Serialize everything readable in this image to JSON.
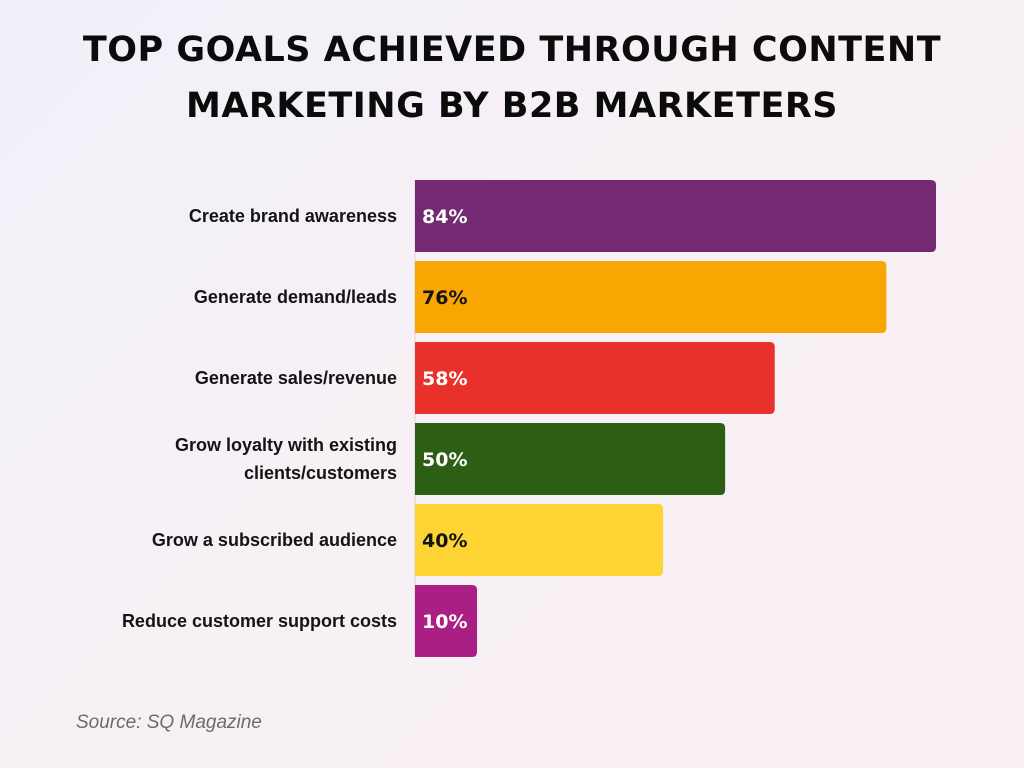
{
  "title_lines": [
    "TOP GOALS ACHIEVED THROUGH CONTENT",
    "MARKETING BY B2B MARKETERS"
  ],
  "source": "Source: SQ Magazine",
  "chart_data": {
    "type": "bar",
    "orientation": "horizontal",
    "title": "TOP GOALS ACHIEVED THROUGH CONTENT MARKETING BY B2B MARKETERS",
    "categories": [
      "Create brand awareness",
      "Generate demand/leads",
      "Generate sales/revenue",
      "Grow loyalty with existing clients/customers",
      "Grow a subscribed audience",
      "Reduce customer support costs"
    ],
    "category_lines": [
      [
        "Create brand awareness"
      ],
      [
        "Generate demand/leads"
      ],
      [
        "Generate sales/revenue"
      ],
      [
        "Grow loyalty with existing",
        "clients/customers"
      ],
      [
        "Grow a subscribed audience"
      ],
      [
        "Reduce customer support costs"
      ]
    ],
    "values": [
      84,
      76,
      58,
      50,
      40,
      10
    ],
    "value_labels": [
      "84%",
      "76%",
      "58%",
      "50%",
      "40%",
      "10%"
    ],
    "unit": "%",
    "bar_colors": [
      "#742a72",
      "#f9a602",
      "#e8312a",
      "#2c5e13",
      "#fdd434",
      "#aa1f83"
    ],
    "label_colors": [
      "#ffffff",
      "#141414",
      "#ffffff",
      "#ffffff",
      "#141414",
      "#ffffff"
    ],
    "xlim": [
      0,
      84
    ],
    "grid": false,
    "legend": "none"
  }
}
